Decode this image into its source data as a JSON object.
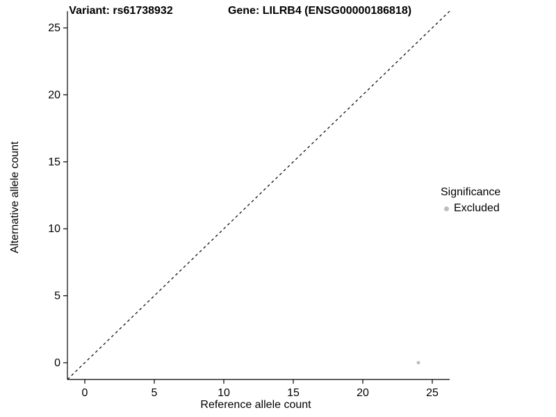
{
  "chart_data": {
    "type": "scatter",
    "title_variant": "Variant: rs61738932",
    "title_gene": "Gene: LILRB4 (ENSG00000186818)",
    "xlabel": "Reference allele count",
    "ylabel": "Alternative allele count",
    "xlim": [
      -1.25,
      26.25
    ],
    "ylim": [
      -1.25,
      26.25
    ],
    "xticks": [
      0,
      5,
      10,
      15,
      20,
      25
    ],
    "yticks": [
      0,
      5,
      10,
      15,
      20,
      25
    ],
    "grid": false,
    "reference_line": {
      "type": "identity",
      "style": "dashed",
      "color": "#000000"
    },
    "series": [
      {
        "name": "Excluded",
        "color": "#bebebe",
        "points": [
          {
            "x": 24,
            "y": 0
          }
        ]
      }
    ],
    "legend": {
      "title": "Significance",
      "position": "right",
      "entries": [
        {
          "label": "Excluded",
          "color": "#bebebe"
        }
      ]
    }
  },
  "colors": {
    "axis": "#000000",
    "tick_text": "#000000",
    "background": "#ffffff"
  }
}
